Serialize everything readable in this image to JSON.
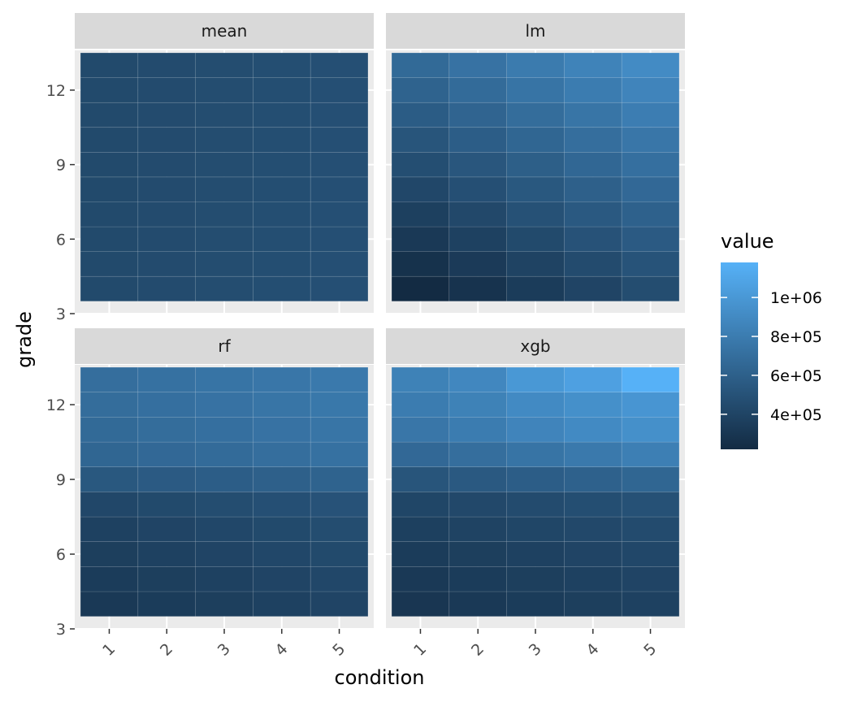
{
  "chart_data": {
    "type": "heatmap",
    "facet_layout": "2x2",
    "xlabel": "condition",
    "ylabel": "grade",
    "x_categories": [
      "1",
      "2",
      "3",
      "4",
      "5"
    ],
    "y_values": [
      4,
      5,
      6,
      7,
      8,
      9,
      10,
      11,
      12,
      13
    ],
    "y_ticks": [
      3,
      6,
      9,
      12
    ],
    "ylim": [
      3,
      13.6
    ],
    "panels": [
      {
        "name": "mean",
        "values": [
          [
            440000,
            450000,
            460000,
            470000,
            480000
          ],
          [
            440000,
            450000,
            460000,
            470000,
            480000
          ],
          [
            440000,
            450000,
            460000,
            470000,
            480000
          ],
          [
            440000,
            450000,
            460000,
            470000,
            480000
          ],
          [
            440000,
            450000,
            460000,
            470000,
            480000
          ],
          [
            440000,
            450000,
            460000,
            470000,
            480000
          ],
          [
            440000,
            450000,
            460000,
            470000,
            480000
          ],
          [
            440000,
            450000,
            460000,
            470000,
            480000
          ],
          [
            440000,
            450000,
            460000,
            470000,
            480000
          ],
          [
            440000,
            450000,
            460000,
            470000,
            480000
          ]
        ]
      },
      {
        "name": "lm",
        "values": [
          [
            220000,
            280000,
            340000,
            400000,
            460000
          ],
          [
            270000,
            330000,
            390000,
            450000,
            510000
          ],
          [
            320000,
            380000,
            440000,
            500000,
            560000
          ],
          [
            370000,
            430000,
            490000,
            550000,
            610000
          ],
          [
            420000,
            480000,
            540000,
            600000,
            660000
          ],
          [
            470000,
            530000,
            590000,
            650000,
            710000
          ],
          [
            520000,
            580000,
            640000,
            700000,
            760000
          ],
          [
            570000,
            630000,
            690000,
            750000,
            810000
          ],
          [
            620000,
            680000,
            740000,
            800000,
            860000
          ],
          [
            670000,
            730000,
            790000,
            850000,
            910000
          ]
        ]
      },
      {
        "name": "rf",
        "values": [
          [
            320000,
            340000,
            360000,
            380000,
            400000
          ],
          [
            340000,
            360000,
            380000,
            400000,
            420000
          ],
          [
            360000,
            380000,
            400000,
            420000,
            440000
          ],
          [
            380000,
            400000,
            420000,
            440000,
            460000
          ],
          [
            420000,
            440000,
            460000,
            480000,
            500000
          ],
          [
            540000,
            560000,
            580000,
            600000,
            620000
          ],
          [
            640000,
            660000,
            680000,
            700000,
            720000
          ],
          [
            670000,
            690000,
            710000,
            730000,
            750000
          ],
          [
            690000,
            710000,
            730000,
            750000,
            770000
          ],
          [
            700000,
            720000,
            740000,
            760000,
            780000
          ]
        ]
      },
      {
        "name": "xgb",
        "values": [
          [
            300000,
            320000,
            340000,
            360000,
            380000
          ],
          [
            320000,
            340000,
            360000,
            380000,
            400000
          ],
          [
            340000,
            360000,
            380000,
            400000,
            420000
          ],
          [
            370000,
            390000,
            410000,
            430000,
            450000
          ],
          [
            410000,
            430000,
            450000,
            470000,
            490000
          ],
          [
            520000,
            550000,
            580000,
            610000,
            640000
          ],
          [
            660000,
            700000,
            740000,
            780000,
            820000
          ],
          [
            760000,
            800000,
            860000,
            900000,
            940000
          ],
          [
            800000,
            840000,
            900000,
            940000,
            980000
          ],
          [
            840000,
            880000,
            1000000,
            1060000,
            1180000
          ]
        ]
      }
    ],
    "legend": {
      "title": "value",
      "placement": "right",
      "min": 220000,
      "max": 1180000,
      "breaks": [
        400000,
        600000,
        800000,
        1000000
      ],
      "labels": [
        "4e+05",
        "6e+05",
        "8e+05",
        "1e+06"
      ],
      "low_color": "#132b43",
      "high_color": "#56b1f7"
    },
    "panel_background": "#ebebeb",
    "strip_background": "#d9d9d9",
    "grid": true
  }
}
